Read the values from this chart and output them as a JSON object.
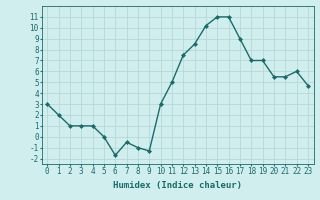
{
  "x": [
    0,
    1,
    2,
    3,
    4,
    5,
    6,
    7,
    8,
    9,
    10,
    11,
    12,
    13,
    14,
    15,
    16,
    17,
    18,
    19,
    20,
    21,
    22,
    23
  ],
  "y": [
    3,
    2,
    1,
    1,
    1,
    0,
    -1.7,
    -0.5,
    -1,
    -1.3,
    3,
    5,
    7.5,
    8.5,
    10.2,
    11,
    11,
    9,
    7,
    7,
    5.5,
    5.5,
    6,
    4.7
  ],
  "line_color": "#1a6b6b",
  "marker": "D",
  "marker_size": 2,
  "bg_color": "#d0eeee",
  "grid_color": "#b8d8d8",
  "xlabel": "Humidex (Indice chaleur)",
  "xlim": [
    -0.5,
    23.5
  ],
  "ylim": [
    -2.5,
    12
  ],
  "xticks": [
    0,
    1,
    2,
    3,
    4,
    5,
    6,
    7,
    8,
    9,
    10,
    11,
    12,
    13,
    14,
    15,
    16,
    17,
    18,
    19,
    20,
    21,
    22,
    23
  ],
  "yticks": [
    -2,
    -1,
    0,
    1,
    2,
    3,
    4,
    5,
    6,
    7,
    8,
    9,
    10,
    11
  ],
  "xlabel_fontsize": 6.5,
  "tick_fontsize": 5.5,
  "line_width": 1.0
}
